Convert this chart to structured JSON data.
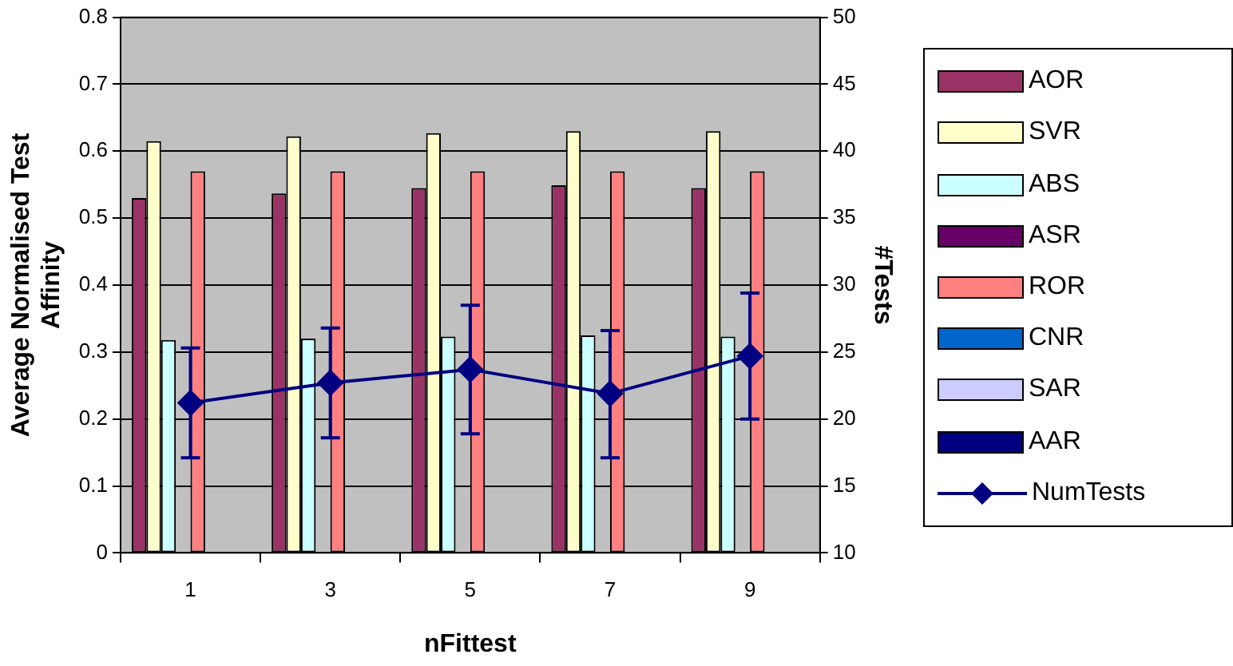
{
  "chart_data": {
    "type": "bar",
    "xlabel": "nFittest",
    "ylabel": "Average Normalised Test Affinity",
    "y2label": "#Tests",
    "categories": [
      "1",
      "3",
      "5",
      "7",
      "9"
    ],
    "series": [
      {
        "name": "AOR",
        "color": "#993366",
        "values": [
          0.53,
          0.537,
          0.545,
          0.549,
          0.545
        ]
      },
      {
        "name": "SVR",
        "color": "#ffffcc",
        "values": [
          0.615,
          0.622,
          0.627,
          0.63,
          0.63
        ]
      },
      {
        "name": "ABS",
        "color": "#ccffff",
        "values": [
          0.318,
          0.32,
          0.323,
          0.325,
          0.323
        ]
      },
      {
        "name": "ASR",
        "color": "#660066",
        "values": [
          0,
          0,
          0,
          0,
          0
        ]
      },
      {
        "name": "ROR",
        "color": "#ff8080",
        "values": [
          0.57,
          0.57,
          0.57,
          0.57,
          0.57
        ]
      },
      {
        "name": "CNR",
        "color": "#0066cc",
        "values": [
          0,
          0,
          0,
          0,
          0
        ]
      },
      {
        "name": "SAR",
        "color": "#ccccff",
        "values": [
          0,
          0,
          0,
          0,
          0
        ]
      },
      {
        "name": "AAR",
        "color": "#000080",
        "values": [
          0,
          0,
          0,
          0,
          0
        ]
      },
      {
        "name": "NumTests",
        "type": "line",
        "axis": "y2",
        "marker": "diamond",
        "color": "#000080",
        "values": [
          21.2,
          22.7,
          23.7,
          21.9,
          24.7
        ],
        "errors": [
          [
            17.1,
            25.3
          ],
          [
            18.6,
            26.8
          ],
          [
            18.9,
            28.5
          ],
          [
            17.1,
            26.6
          ],
          [
            20.0,
            29.4
          ]
        ]
      }
    ],
    "ylim": [
      0,
      0.8
    ],
    "yticks": [
      0,
      0.1,
      0.2,
      0.3,
      0.4,
      0.5,
      0.6,
      0.7,
      0.8
    ],
    "y2lim": [
      10,
      50
    ],
    "y2ticks": [
      10,
      15,
      20,
      25,
      30,
      35,
      40,
      45,
      50
    ],
    "grid": "y",
    "legend": "right"
  }
}
